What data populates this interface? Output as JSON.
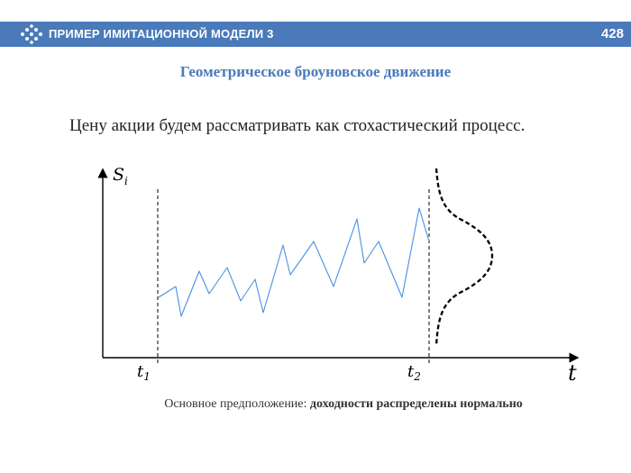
{
  "header": {
    "title": "ПРИМЕР ИМИТАЦИОННОЙ МОДЕЛИ 3",
    "page_number": "428",
    "logo_icon": "arrow-dots-icon",
    "color": "#4a7ab9"
  },
  "subtitle": "Геометрическое броуновское движение",
  "body_text": "Цену акции будем рассматривать как стохастический процесс.",
  "figure": {
    "y_axis_label": "S",
    "y_axis_subscript": "i",
    "x_axis_label": "t",
    "t1_label": "t",
    "t1_subscript": "1",
    "t2_label": "t",
    "t2_subscript": "2",
    "path_color": "#4a90e2",
    "curve_color": "#000000"
  },
  "caption": {
    "prefix": "Основное предположение: ",
    "emphasis": "доходности распределены нормально"
  }
}
